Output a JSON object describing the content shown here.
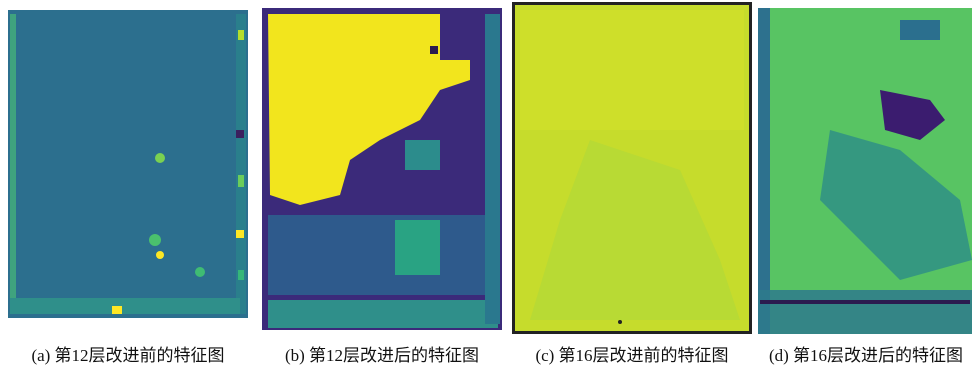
{
  "panels": [
    {
      "caption": "(a) 第12层改进前的特征图"
    },
    {
      "caption": "(b) 第12层改进后的特征图"
    },
    {
      "caption": "(c) 第16层改进前的特征图"
    },
    {
      "caption": "(d) 第16层改进后的特征图"
    }
  ]
}
